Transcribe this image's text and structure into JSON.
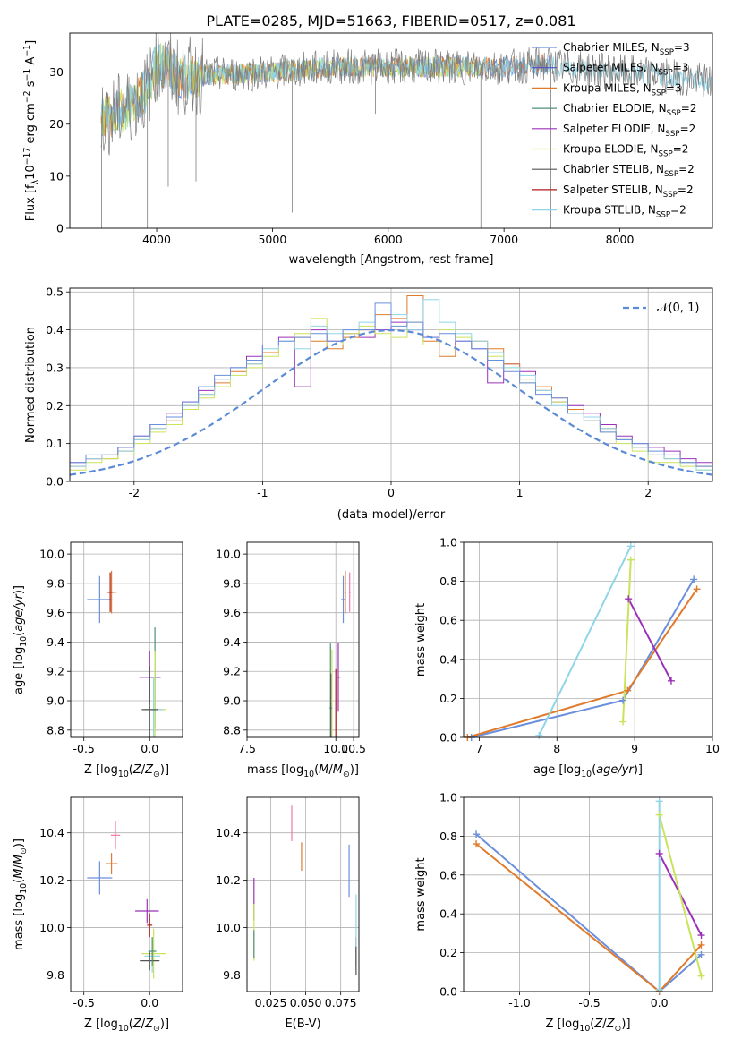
{
  "figure_title": "PLATE=0285, MJD=51663, FIBERID=0517, z=0.081",
  "colors": {
    "Chabrier MILES": "#6a8fdc",
    "Salpeter MILES": "#4a4fd0",
    "Kroupa MILES": "#e07b2c",
    "Chabrier ELODIE": "#4f8f7a",
    "Salpeter ELODIE": "#9b30b8",
    "Kroupa ELODIE": "#c9e35a",
    "Chabrier STELIB": "#555555",
    "Salpeter STELIB": "#b01a1a",
    "Kroupa STELIB": "#8fd5e8",
    "pink": "#f07aa8",
    "gaussian": "#5b8bd6",
    "data": "#7f7f7f"
  },
  "chart_data": [
    {
      "id": "spectrum",
      "type": "line",
      "title": "PLATE=0285, MJD=51663, FIBERID=0517, z=0.081",
      "xlabel": "wavelength [Angstrom, rest frame]",
      "ylabel": "Flux [f_λ10^-17 erg cm^-2 s^-1 A^-1]",
      "xlim": [
        3250,
        8800
      ],
      "ylim": [
        0,
        37.5
      ],
      "xticks": [
        4000,
        5000,
        6000,
        7000,
        8000
      ],
      "yticks": [
        0,
        10,
        20,
        30
      ],
      "legend_position": "top-right",
      "legend": [
        {
          "base": "Chabrier MILES, N",
          "sub": "SSP",
          "tail": "=3",
          "color": "#6a8fdc"
        },
        {
          "base": "Salpeter MILES, N",
          "sub": "SSP",
          "tail": "=3",
          "color": "#4a4fd0"
        },
        {
          "base": "Kroupa MILES, N",
          "sub": "SSP",
          "tail": "=3",
          "color": "#e07b2c"
        },
        {
          "base": "Chabrier ELODIE, N",
          "sub": "SSP",
          "tail": "=2",
          "color": "#4f8f7a"
        },
        {
          "base": "Salpeter ELODIE, N",
          "sub": "SSP",
          "tail": "=2",
          "color": "#9b30b8"
        },
        {
          "base": "Kroupa ELODIE, N",
          "sub": "SSP",
          "tail": "=2",
          "color": "#c9e35a"
        },
        {
          "base": "Chabrier STELIB, N",
          "sub": "SSP",
          "tail": "=2",
          "color": "#555555"
        },
        {
          "base": "Salpeter STELIB, N",
          "sub": "SSP",
          "tail": "=2",
          "color": "#b01a1a"
        },
        {
          "base": "Kroupa STELIB, N",
          "sub": "SSP",
          "tail": "=2",
          "color": "#8fd5e8"
        }
      ],
      "continuum": [
        [
          3520,
          21
        ],
        [
          3650,
          22
        ],
        [
          3800,
          24
        ],
        [
          3930,
          27
        ],
        [
          4000,
          32
        ],
        [
          4200,
          29
        ],
        [
          4500,
          29.5
        ],
        [
          5000,
          30
        ],
        [
          5500,
          31
        ],
        [
          6000,
          31
        ],
        [
          6500,
          31
        ],
        [
          7000,
          31
        ],
        [
          7400,
          31.5
        ],
        [
          7500,
          31
        ],
        [
          8000,
          30
        ],
        [
          8500,
          29
        ],
        [
          8800,
          28
        ]
      ],
      "spikes": [
        [
          3525,
          0
        ],
        [
          3920,
          0
        ],
        [
          4100,
          8
        ],
        [
          4340,
          9
        ],
        [
          5170,
          3
        ],
        [
          5890,
          22
        ],
        [
          6800,
          0
        ],
        [
          7405,
          0
        ]
      ]
    },
    {
      "id": "residuals",
      "type": "line",
      "xlabel": "(data-model)/error",
      "ylabel": "Normed distribution",
      "xlim": [
        -2.5,
        2.5
      ],
      "ylim": [
        0,
        0.51
      ],
      "xticks": [
        -2,
        -1,
        0,
        1,
        2
      ],
      "yticks": [
        0.0,
        0.1,
        0.2,
        0.3,
        0.4,
        0.5
      ],
      "grid": true,
      "legend_position": "top-right",
      "legend_label": "N(0,1)",
      "hist_series": [
        {
          "name": "Salpeter ELODIE",
          "color": "#9b30b8",
          "values": [
            0.05,
            0.06,
            0.07,
            0.09,
            0.12,
            0.15,
            0.18,
            0.21,
            0.24,
            0.27,
            0.3,
            0.33,
            0.36,
            0.38,
            0.25,
            0.4,
            0.37,
            0.39,
            0.38,
            0.4,
            0.42,
            0.4,
            0.38,
            0.36,
            0.37,
            0.35,
            0.26,
            0.31,
            0.29,
            0.24,
            0.21,
            0.2,
            0.18,
            0.15,
            0.12,
            0.1,
            0.09,
            0.08,
            0.06,
            0.05
          ]
        },
        {
          "name": "Kroupa MILES",
          "color": "#e07b2c",
          "values": [
            0.04,
            0.06,
            0.06,
            0.08,
            0.11,
            0.14,
            0.16,
            0.2,
            0.23,
            0.26,
            0.29,
            0.31,
            0.34,
            0.36,
            0.38,
            0.37,
            0.35,
            0.38,
            0.4,
            0.44,
            0.43,
            0.49,
            0.37,
            0.33,
            0.36,
            0.37,
            0.35,
            0.31,
            0.27,
            0.25,
            0.22,
            0.19,
            0.17,
            0.14,
            0.11,
            0.09,
            0.07,
            0.06,
            0.05,
            0.04
          ]
        },
        {
          "name": "Kroupa ELODIE",
          "color": "#c9e35a",
          "values": [
            0.03,
            0.05,
            0.06,
            0.07,
            0.1,
            0.13,
            0.15,
            0.19,
            0.22,
            0.25,
            0.28,
            0.3,
            0.33,
            0.36,
            0.39,
            0.43,
            0.36,
            0.39,
            0.41,
            0.39,
            0.38,
            0.42,
            0.36,
            0.4,
            0.38,
            0.36,
            0.33,
            0.3,
            0.26,
            0.24,
            0.21,
            0.18,
            0.16,
            0.13,
            0.1,
            0.08,
            0.05,
            0.05,
            0.04,
            0.03
          ]
        },
        {
          "name": "Kroupa STELIB",
          "color": "#8fd5e8",
          "values": [
            0.04,
            0.06,
            0.07,
            0.08,
            0.11,
            0.14,
            0.17,
            0.2,
            0.23,
            0.27,
            0.3,
            0.31,
            0.35,
            0.37,
            0.35,
            0.41,
            0.39,
            0.4,
            0.42,
            0.45,
            0.44,
            0.4,
            0.48,
            0.42,
            0.39,
            0.37,
            0.34,
            0.3,
            0.28,
            0.24,
            0.2,
            0.18,
            0.17,
            0.14,
            0.11,
            0.09,
            0.07,
            0.06,
            0.05,
            0.03
          ]
        },
        {
          "name": "Chabrier MILES",
          "color": "#6a8fdc",
          "values": [
            0.05,
            0.07,
            0.07,
            0.09,
            0.12,
            0.15,
            0.17,
            0.21,
            0.25,
            0.28,
            0.3,
            0.32,
            0.36,
            0.37,
            0.38,
            0.39,
            0.37,
            0.4,
            0.4,
            0.47,
            0.41,
            0.42,
            0.38,
            0.39,
            0.37,
            0.35,
            0.32,
            0.29,
            0.26,
            0.23,
            0.22,
            0.18,
            0.16,
            0.13,
            0.11,
            0.1,
            0.08,
            0.07,
            0.05,
            0.04
          ]
        }
      ],
      "gaussian": {
        "mean": 0,
        "sd": 1
      }
    },
    {
      "id": "age_vs_Z",
      "type": "scatter",
      "xlabel": "Z [log10(Z/Z⊙)]",
      "ylabel": "age [log10(age/yr)]",
      "xlim": [
        -0.6,
        0.25
      ],
      "ylim": [
        8.75,
        10.08
      ],
      "xticks": [
        -0.5,
        0.0
      ],
      "yticks": [
        8.8,
        9.0,
        9.2,
        9.4,
        9.6,
        9.8,
        10.0
      ],
      "grid": true,
      "points": [
        {
          "x": -0.38,
          "y": 9.69,
          "dx": 0.19,
          "dy": 0.32,
          "color": "#6a8fdc"
        },
        {
          "x": -0.29,
          "y": 9.74,
          "dx": 0.08,
          "dy": 0.29,
          "color": "#e07b2c"
        },
        {
          "x": -0.3,
          "y": 9.74,
          "dx": 0.05,
          "dy": 0.27,
          "color": "#b01a1a"
        },
        {
          "x": 0.04,
          "y": 9.16,
          "dx": 0.09,
          "dy": 0.68,
          "color": "#4f8f7a"
        },
        {
          "x": 0.0,
          "y": 9.16,
          "dx": 0.16,
          "dy": 0.36,
          "color": "#9b30b8"
        },
        {
          "x": 0.04,
          "y": 8.94,
          "dx": 0.17,
          "dy": 0.8,
          "color": "#c9e35a"
        },
        {
          "x": 0.03,
          "y": 8.94,
          "dx": 0.14,
          "dy": 0.45,
          "color": "#8fd5e8"
        },
        {
          "x": 0.0,
          "y": 8.94,
          "dx": 0.12,
          "dy": 0.59,
          "color": "#555555"
        }
      ]
    },
    {
      "id": "age_vs_mass",
      "type": "scatter",
      "xlabel": "mass [log10(M/M⊙)]",
      "ylabel": "",
      "xlim": [
        7.5,
        10.65
      ],
      "ylim": [
        8.75,
        10.08
      ],
      "xticks": [
        7.5,
        10.0,
        10.5
      ],
      "yticks": [
        8.8,
        9.0,
        9.2,
        9.4,
        9.6,
        9.8,
        10.0
      ],
      "grid": true,
      "points": [
        {
          "x": 10.21,
          "y": 9.69,
          "dx": 0.12,
          "dy": 0.32,
          "color": "#6a8fdc"
        },
        {
          "x": 10.27,
          "y": 9.74,
          "dx": 0.06,
          "dy": 0.29,
          "color": "#e07b2c"
        },
        {
          "x": 10.39,
          "y": 9.74,
          "dx": 0.07,
          "dy": 0.27,
          "color": "#f07aa8"
        },
        {
          "x": 9.85,
          "y": 8.95,
          "dx": 0.05,
          "dy": 0.88,
          "color": "#4f8f7a"
        },
        {
          "x": 10.07,
          "y": 9.16,
          "dx": 0.11,
          "dy": 0.47,
          "color": "#9b30b8"
        },
        {
          "x": 9.89,
          "y": 8.95,
          "dx": 0.04,
          "dy": 0.8,
          "color": "#c9e35a"
        },
        {
          "x": 9.86,
          "y": 8.95,
          "dx": 0.09,
          "dy": 0.44,
          "color": "#8fd5e8"
        },
        {
          "x": 10.0,
          "y": 8.95,
          "dx": 0.02,
          "dy": 0.53,
          "color": "#b01a1a"
        },
        {
          "x": 9.86,
          "y": 8.95,
          "dx": 0.05,
          "dy": 0.47,
          "color": "#555555"
        }
      ]
    },
    {
      "id": "weight_vs_age",
      "type": "line",
      "xlabel": "age [log10(age/yr)]",
      "ylabel": "mass weight",
      "xlim": [
        6.8,
        10.0
      ],
      "ylim": [
        0,
        1.0
      ],
      "xticks": [
        7,
        8,
        9,
        10
      ],
      "yticks": [
        0.0,
        0.2,
        0.4,
        0.6,
        0.8,
        1.0
      ],
      "grid": true,
      "series": [
        {
          "name": "Chabrier MILES",
          "color": "#6a8fdc",
          "x": [
            6.9,
            8.85,
            9.76
          ],
          "y": [
            0.0,
            0.19,
            0.81
          ]
        },
        {
          "name": "Kroupa MILES",
          "color": "#e07b2c",
          "x": [
            6.85,
            8.91,
            9.8
          ],
          "y": [
            0.0,
            0.24,
            0.76
          ]
        },
        {
          "name": "Salpeter ELODIE",
          "color": "#9b30b8",
          "x": [
            8.92,
            9.47
          ],
          "y": [
            0.71,
            0.29
          ]
        },
        {
          "name": "Kroupa ELODIE",
          "color": "#c9e35a",
          "x": [
            8.85,
            8.95
          ],
          "y": [
            0.08,
            0.91
          ]
        },
        {
          "name": "Kroupa STELIB",
          "color": "#8fd5e8",
          "x": [
            7.77,
            8.95
          ],
          "y": [
            0.01,
            0.98
          ]
        }
      ]
    },
    {
      "id": "mass_vs_Z",
      "type": "scatter",
      "xlabel": "Z [log10(Z/Z⊙)]",
      "ylabel": "mass [log10(M/M⊙)]",
      "xlim": [
        -0.6,
        0.25
      ],
      "ylim": [
        9.73,
        10.55
      ],
      "xticks": [
        -0.5,
        0.0
      ],
      "yticks": [
        9.8,
        10.0,
        10.2,
        10.4
      ],
      "grid": true,
      "points": [
        {
          "x": -0.38,
          "y": 10.21,
          "dx": 0.19,
          "dy": 0.14,
          "color": "#6a8fdc"
        },
        {
          "x": -0.29,
          "y": 10.27,
          "dx": 0.09,
          "dy": 0.09,
          "color": "#e07b2c"
        },
        {
          "x": -0.26,
          "y": 10.39,
          "dx": 0.07,
          "dy": 0.12,
          "color": "#f07aa8"
        },
        {
          "x": 0.0,
          "y": 10.01,
          "dx": 0.04,
          "dy": 0.1,
          "color": "#b01a1a"
        },
        {
          "x": -0.02,
          "y": 10.07,
          "dx": 0.18,
          "dy": 0.1,
          "color": "#9b30b8"
        },
        {
          "x": 0.03,
          "y": 9.89,
          "dx": 0.18,
          "dy": 0.21,
          "color": "#c9e35a"
        },
        {
          "x": 0.02,
          "y": 9.88,
          "dx": 0.12,
          "dy": 0.14,
          "color": "#8fd5e8"
        },
        {
          "x": 0.0,
          "y": 9.86,
          "dx": 0.15,
          "dy": 0.08,
          "color": "#555555"
        },
        {
          "x": 0.02,
          "y": 9.9,
          "dx": 0.06,
          "dy": 0.12,
          "color": "#4f8f7a"
        }
      ]
    },
    {
      "id": "mass_vs_ebv",
      "type": "scatter",
      "xlabel": "E(B-V)",
      "ylabel": "",
      "xlim": [
        0.008,
        0.088
      ],
      "ylim": [
        9.73,
        10.55
      ],
      "xticks": [
        0.025,
        0.05,
        0.075
      ],
      "xticklabels": [
        "0.025",
        "0.050",
        "0.075"
      ],
      "yticks": [
        9.8,
        10.0,
        10.2,
        10.4
      ],
      "grid": true,
      "points": [
        {
          "x": 0.081,
          "y": 10.24,
          "dx": 0.0,
          "dy": 0.22,
          "color": "#6a8fdc"
        },
        {
          "x": 0.047,
          "y": 10.3,
          "dx": 0.0,
          "dy": 0.12,
          "color": "#e07b2c"
        },
        {
          "x": 0.04,
          "y": 10.44,
          "dx": 0.0,
          "dy": 0.15,
          "color": "#f07aa8"
        },
        {
          "x": 0.086,
          "y": 9.9,
          "dx": 0.0,
          "dy": 0.12,
          "color": "#b01a1a"
        },
        {
          "x": 0.013,
          "y": 10.12,
          "dx": 0.0,
          "dy": 0.18,
          "color": "#9b30b8"
        },
        {
          "x": 0.013,
          "y": 9.98,
          "dx": 0.0,
          "dy": 0.24,
          "color": "#c9e35a"
        },
        {
          "x": 0.086,
          "y": 9.98,
          "dx": 0.0,
          "dy": 0.32,
          "color": "#8fd5e8"
        },
        {
          "x": 0.086,
          "y": 9.86,
          "dx": 0.0,
          "dy": 0.12,
          "color": "#555555"
        },
        {
          "x": 0.013,
          "y": 9.93,
          "dx": 0.0,
          "dy": 0.12,
          "color": "#4f8f7a"
        }
      ]
    },
    {
      "id": "weight_vs_Z",
      "type": "line",
      "xlabel": "Z [log10(Z/Z⊙)]",
      "ylabel": "mass weight",
      "xlim": [
        -1.4,
        0.38
      ],
      "ylim": [
        0,
        1.0
      ],
      "xticks": [
        -1.0,
        -0.5,
        0.0
      ],
      "yticks": [
        0.0,
        0.2,
        0.4,
        0.6,
        0.8,
        1.0
      ],
      "grid": true,
      "series": [
        {
          "name": "Chabrier MILES",
          "color": "#6a8fdc",
          "x": [
            -1.31,
            0.0,
            0.3
          ],
          "y": [
            0.81,
            0.0,
            0.19
          ]
        },
        {
          "name": "Kroupa MILES",
          "color": "#e07b2c",
          "x": [
            -1.31,
            0.0,
            0.3
          ],
          "y": [
            0.76,
            0.0,
            0.24
          ]
        },
        {
          "name": "Salpeter ELODIE",
          "color": "#9b30b8",
          "x": [
            0.0,
            0.3
          ],
          "y": [
            0.71,
            0.29
          ]
        },
        {
          "name": "Kroupa ELODIE",
          "color": "#c9e35a",
          "x": [
            0.0,
            0.3
          ],
          "y": [
            0.91,
            0.08
          ]
        },
        {
          "name": "Kroupa STELIB",
          "color": "#8fd5e8",
          "x": [
            0.0,
            0.0
          ],
          "y": [
            0.01,
            0.98
          ]
        }
      ]
    }
  ]
}
